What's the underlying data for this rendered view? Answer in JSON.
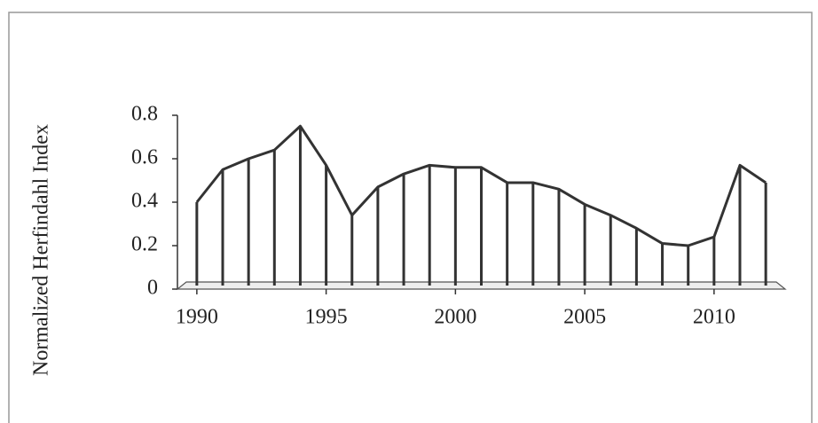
{
  "chart_data": {
    "type": "line",
    "y_label": "Normalized Herfindahl Index",
    "x": [
      1990,
      1991,
      1992,
      1993,
      1994,
      1995,
      1996,
      1997,
      1998,
      1999,
      2000,
      2001,
      2002,
      2003,
      2004,
      2005,
      2006,
      2007,
      2008,
      2009,
      2010,
      2011,
      2012
    ],
    "values": [
      0.4,
      0.55,
      0.6,
      0.64,
      0.75,
      0.57,
      0.34,
      0.47,
      0.53,
      0.57,
      0.56,
      0.56,
      0.49,
      0.49,
      0.46,
      0.39,
      0.34,
      0.28,
      0.21,
      0.2,
      0.24,
      0.57,
      0.49
    ],
    "color": "#333333",
    "xlim": [
      1989.25,
      2012.75
    ],
    "xticks": [
      1990,
      1995,
      2000,
      2005,
      2010
    ],
    "ylim": [
      0,
      0.8
    ],
    "yticks": [
      0,
      {
        "value": 0.2,
        "label": "0.2"
      },
      {
        "value": 0.4,
        "label": "0.4"
      },
      {
        "value": 0.6,
        "label": "0.6"
      },
      {
        "value": 0.8,
        "label": "0.8"
      }
    ]
  }
}
